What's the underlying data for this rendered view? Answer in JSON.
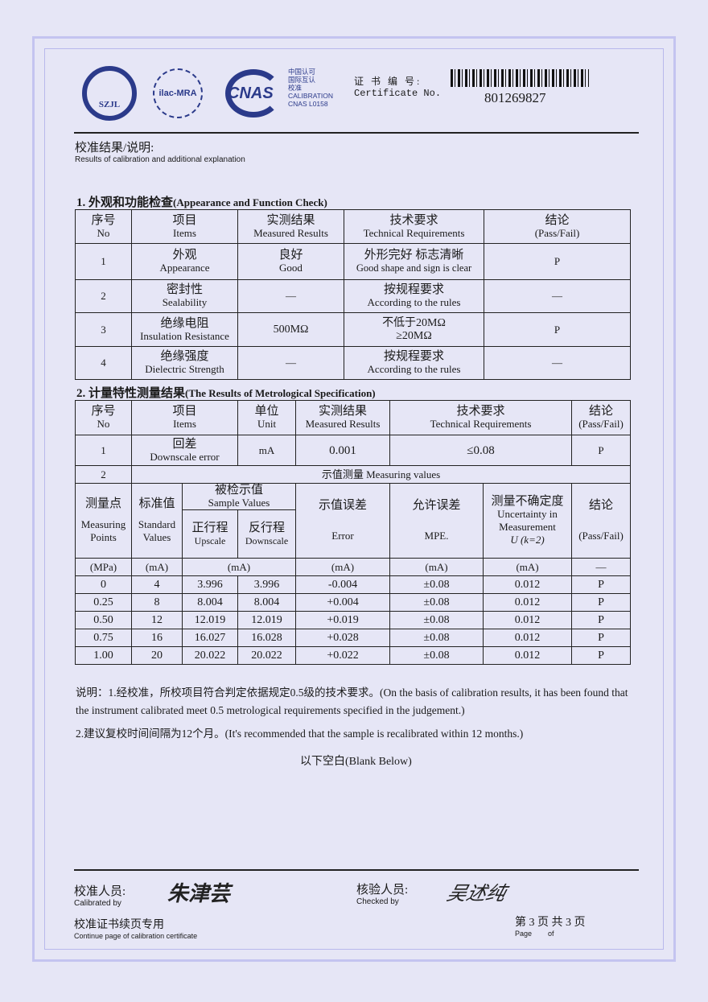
{
  "header": {
    "logo1": "SZJL",
    "logo2": "ilac-MRA",
    "logo3": "CNAS",
    "cnas_lines": [
      "中国认可",
      "国际互认",
      "校准",
      "CALIBRATION",
      "CNAS L0158"
    ],
    "cert_label_cn": "证 书 编 号:",
    "cert_label_en": "Certificate No.",
    "cert_no": "801269827"
  },
  "intro": {
    "cn": "校准结果/说明:",
    "en": "Results of calibration and additional explanation"
  },
  "section1": {
    "title_cn": "1. 外观和功能检查",
    "title_en": "(Appearance and Function Check)",
    "headers": [
      [
        "序号",
        "No"
      ],
      [
        "项目",
        "Items"
      ],
      [
        "实测结果",
        "Measured Results"
      ],
      [
        "技术要求",
        "Technical Requirements"
      ],
      [
        "结论",
        "(Pass/Fail)"
      ]
    ],
    "rows": [
      {
        "no": "1",
        "item_cn": "外观",
        "item_en": "Appearance",
        "result_cn": "良好",
        "result_en": "Good",
        "req_cn": "外形完好 标志清晰",
        "req_en": "Good shape and sign is clear",
        "verdict": "P"
      },
      {
        "no": "2",
        "item_cn": "密封性",
        "item_en": "Sealability",
        "result_cn": "—",
        "result_en": "",
        "req_cn": "按规程要求",
        "req_en": "According to the rules",
        "verdict": "—"
      },
      {
        "no": "3",
        "item_cn": "绝缘电阻",
        "item_en": "Insulation Resistance",
        "result_cn": "500MΩ",
        "result_en": "",
        "req_cn": "不低于20MΩ",
        "req_en": "≥20MΩ",
        "verdict": "P"
      },
      {
        "no": "4",
        "item_cn": "绝缘强度",
        "item_en": "Dielectric Strength",
        "result_cn": "—",
        "result_en": "",
        "req_cn": "按规程要求",
        "req_en": "According to the rules",
        "verdict": "—"
      }
    ]
  },
  "section2": {
    "title_cn": "2. 计量特性测量结果",
    "title_en": "(The Results of Metrological Specification)",
    "headers": [
      [
        "序号",
        "No"
      ],
      [
        "项目",
        "Items"
      ],
      [
        "单位",
        "Unit"
      ],
      [
        "实测结果",
        "Measured Results"
      ],
      [
        "技术要求",
        "Technical Requirements"
      ],
      [
        "结论",
        "(Pass/Fail)"
      ]
    ],
    "row1": {
      "no": "1",
      "item_cn": "回差",
      "item_en": "Downscale error",
      "unit": "mA",
      "result": "0.001",
      "req": "≤0.08",
      "verdict": "P"
    },
    "row2": {
      "no": "2",
      "label": "示值测量  Measuring values"
    },
    "sub_headers": {
      "points_cn": "测量点",
      "points_en": "Measuring Points",
      "std_cn": "标准值",
      "std_en": "Standard Values",
      "sample_cn": "被检示值",
      "sample_en": "Sample Values",
      "up_cn": "正行程",
      "up_en": "Upscale",
      "down_cn": "反行程",
      "down_en": "Downscale",
      "err_cn": "示值误差",
      "err_en": "Error",
      "mpe_cn": "允许误差",
      "mpe_en": "MPE.",
      "unc_cn": "测量不确定度",
      "unc_en": "Uncertainty in Measurement",
      "unc_k": "U (k=2)",
      "res_cn": "结论",
      "res_en": "(Pass/Fail)"
    },
    "units": [
      "(MPa)",
      "(mA)",
      "(mA)",
      "(mA)",
      "(mA)",
      "(mA)",
      "—"
    ],
    "data": [
      [
        "0",
        "4",
        "3.996",
        "3.996",
        "-0.004",
        "±0.08",
        "0.012",
        "P"
      ],
      [
        "0.25",
        "8",
        "8.004",
        "8.004",
        "+0.004",
        "±0.08",
        "0.012",
        "P"
      ],
      [
        "0.50",
        "12",
        "12.019",
        "12.019",
        "+0.019",
        "±0.08",
        "0.012",
        "P"
      ],
      [
        "0.75",
        "16",
        "16.027",
        "16.028",
        "+0.028",
        "±0.08",
        "0.012",
        "P"
      ],
      [
        "1.00",
        "20",
        "20.022",
        "20.022",
        "+0.022",
        "±0.08",
        "0.012",
        "P"
      ]
    ]
  },
  "notes": [
    "说明：1.经校准，所校项目符合判定依据规定0.5级的技术要求。(On the basis of calibration results, it has been found that the instrument calibrated meet 0.5 metrological requirements specified in the judgement.)",
    "2.建议复校时间间隔为12个月。(It's recommended that the sample is recalibrated  within  12 months.)"
  ],
  "blank_below": "以下空白(Blank Below)",
  "footer": {
    "calibrated_cn": "校准人员:",
    "calibrated_en": "Calibrated by",
    "calibrator_sig": "朱津芸",
    "checked_cn": "核验人员:",
    "checked_en": "Checked by",
    "checker_sig": "吴述纯",
    "continue_cn": "校准证书续页专用",
    "continue_en": "Continue page of calibration certificate",
    "page_cn": "第 3 页 共 3 页",
    "page_en": "Page        of"
  }
}
